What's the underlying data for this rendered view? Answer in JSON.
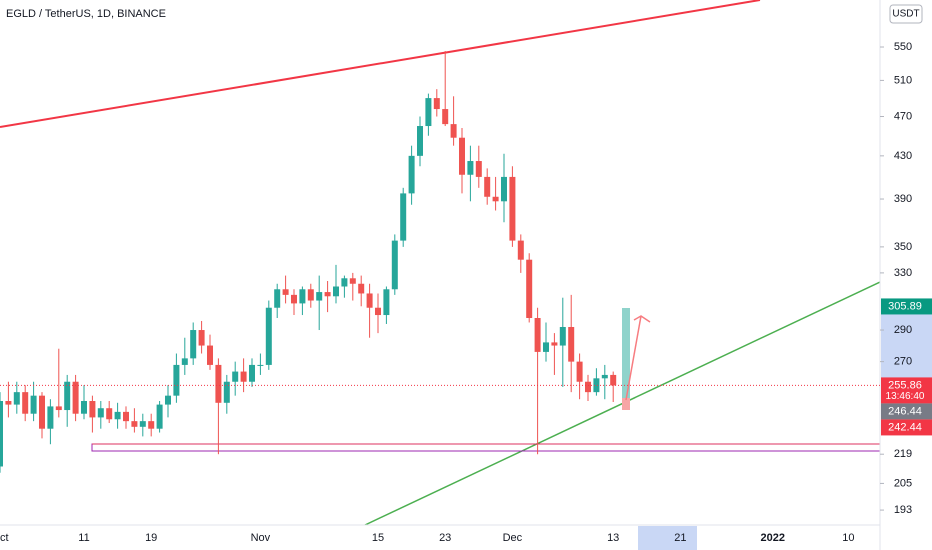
{
  "chart_data": {
    "type": "candlestick",
    "title": "EGLD / TetherUS, 1D, BINANCE",
    "currency": "USDT",
    "log_scale": true,
    "grid": false,
    "up_color": "#26a69a",
    "down_color": "#ef5350",
    "ylim": [
      186.6,
      611.7
    ],
    "yticks": [
      193,
      205,
      219,
      270,
      290,
      330,
      350,
      390,
      430,
      470,
      510,
      550
    ],
    "categories": [
      "Oct",
      null,
      null,
      null,
      null,
      null,
      null,
      null,
      null,
      null,
      "11",
      null,
      null,
      null,
      null,
      null,
      null,
      null,
      "19",
      null,
      null,
      null,
      null,
      null,
      null,
      null,
      null,
      null,
      null,
      null,
      null,
      "Nov",
      null,
      null,
      null,
      null,
      null,
      null,
      null,
      null,
      null,
      null,
      null,
      null,
      null,
      "15",
      null,
      null,
      null,
      null,
      null,
      null,
      null,
      "23",
      null,
      null,
      null,
      null,
      null,
      null,
      null,
      "Dec",
      null,
      null,
      null,
      null,
      null,
      null,
      null,
      null,
      null,
      null,
      null,
      "13",
      null,
      null,
      null,
      null,
      null,
      null,
      null,
      "21",
      null,
      null,
      null,
      null,
      null,
      null,
      null,
      null,
      null,
      null,
      "2022",
      null,
      null,
      null,
      null,
      null,
      null,
      null,
      null,
      "10"
    ],
    "open": [
      213,
      247,
      245,
      252,
      240,
      250,
      232,
      244,
      242,
      258,
      240,
      247,
      238,
      243,
      237,
      241,
      236,
      233,
      236,
      232,
      245,
      250,
      268,
      272,
      290,
      280,
      268,
      246,
      258,
      264,
      258,
      268,
      268,
      305,
      318,
      314,
      308,
      318,
      310,
      316,
      313,
      320,
      326,
      322,
      315,
      305,
      300,
      318,
      355,
      395,
      430,
      460,
      490,
      478,
      462,
      448,
      412,
      425,
      410,
      392,
      388,
      410,
      355,
      340,
      298,
      276,
      282,
      280,
      292,
      270,
      258,
      252,
      260,
      262,
      null,
      null,
      null,
      null,
      null,
      null,
      null,
      null,
      null,
      null,
      null,
      null,
      null,
      null,
      null,
      null,
      null,
      null,
      null,
      null,
      null,
      null,
      null,
      null,
      null,
      null,
      null,
      null
    ],
    "high": [
      252,
      258,
      258,
      256,
      258,
      252,
      248,
      278,
      262,
      262,
      256,
      250,
      247,
      247,
      246,
      244,
      243,
      240,
      240,
      247,
      256,
      275,
      285,
      295,
      296,
      287,
      272,
      262,
      270,
      272,
      272,
      275,
      310,
      322,
      328,
      318,
      320,
      322,
      328,
      324,
      336,
      328,
      330,
      328,
      322,
      315,
      320,
      360,
      400,
      440,
      470,
      495,
      500,
      545,
      492,
      458,
      440,
      440,
      418,
      410,
      432,
      420,
      360,
      345,
      305,
      295,
      288,
      312,
      314,
      275,
      262,
      266,
      268,
      264,
      null,
      null,
      null,
      null,
      null,
      null,
      null,
      null,
      null,
      null,
      null,
      null,
      null,
      null,
      null,
      null,
      null,
      null,
      null,
      null,
      null,
      null,
      null,
      null,
      null,
      null,
      null,
      null
    ],
    "low": [
      210,
      238,
      240,
      236,
      236,
      227,
      224,
      238,
      233,
      236,
      237,
      230,
      232,
      235,
      232,
      232,
      230,
      228,
      228,
      230,
      238,
      246,
      262,
      268,
      275,
      265,
      219,
      240,
      250,
      252,
      255,
      262,
      265,
      298,
      308,
      300,
      300,
      305,
      290,
      302,
      308,
      312,
      310,
      306,
      285,
      288,
      294,
      314,
      350,
      385,
      420,
      450,
      470,
      460,
      440,
      395,
      388,
      400,
      385,
      380,
      370,
      350,
      330,
      295,
      219,
      270,
      262,
      255,
      252,
      248,
      247,
      250,
      248,
      246.44,
      null,
      null,
      null,
      null,
      null,
      null,
      null,
      null,
      null,
      null,
      null,
      null,
      null,
      null,
      null,
      null,
      null,
      null,
      null,
      null,
      null,
      null,
      null,
      null,
      null,
      null,
      null,
      null
    ],
    "close": [
      247,
      245,
      252,
      240,
      250,
      232,
      244,
      242,
      258,
      240,
      247,
      238,
      243,
      237,
      241,
      236,
      233,
      236,
      232,
      245,
      250,
      268,
      272,
      290,
      280,
      268,
      246,
      258,
      264,
      258,
      268,
      268,
      305,
      318,
      314,
      308,
      318,
      310,
      316,
      313,
      320,
      326,
      322,
      315,
      305,
      300,
      318,
      355,
      395,
      430,
      460,
      490,
      478,
      462,
      448,
      412,
      425,
      410,
      392,
      388,
      410,
      355,
      340,
      298,
      276,
      282,
      280,
      292,
      270,
      258,
      252,
      260,
      262,
      255.86,
      null,
      null,
      null,
      null,
      null,
      null,
      null,
      null,
      null,
      null,
      null,
      null,
      null,
      null,
      null,
      null,
      null,
      null,
      null,
      null,
      null,
      null,
      null,
      null,
      null,
      null,
      null,
      null
    ],
    "price_labels": [
      {
        "value": 305.89,
        "color": "#089981"
      },
      {
        "value": 255.86,
        "color": "#f23645"
      },
      {
        "value": 246.44,
        "color": "#787b86"
      },
      {
        "value": 242.44,
        "color": "#f23645"
      }
    ],
    "countdown": "13:46:40"
  }
}
